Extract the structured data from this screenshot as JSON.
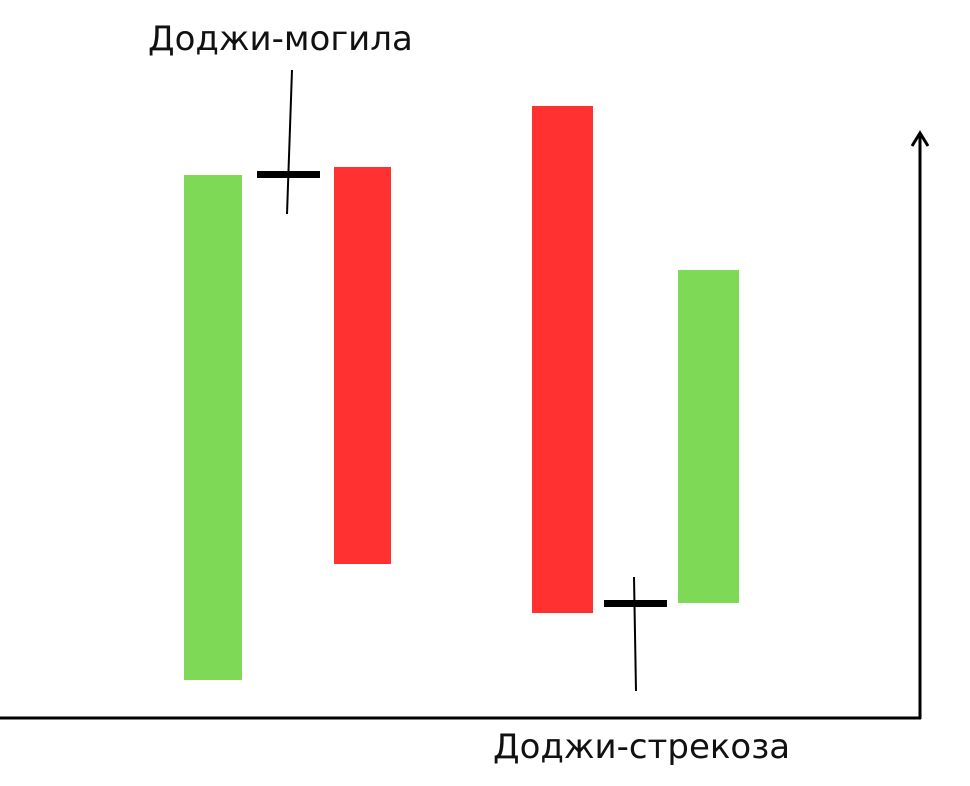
{
  "labels": {
    "gravestone": "Доджи-могила",
    "dragonfly": "Доджи-стрекоза"
  }
}
